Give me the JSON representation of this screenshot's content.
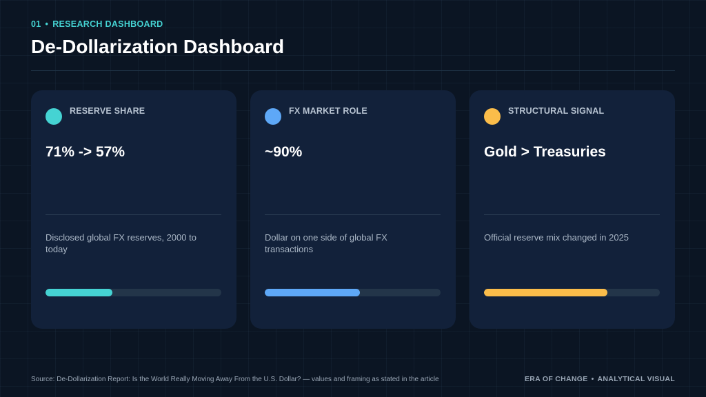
{
  "header": {
    "section_number": "01",
    "section_label": "RESEARCH DASHBOARD",
    "title": "De-Dollarization Dashboard"
  },
  "cards": [
    {
      "label": "RESERVE SHARE",
      "value": "71% -> 57%",
      "description": "Disclosed global FX reserves, 2000 to today",
      "color": "#45d3d3",
      "progress_fraction": 0.38
    },
    {
      "label": "FX MARKET ROLE",
      "value": "~90%",
      "description": "Dollar on one side of global FX transactions",
      "color": "#5ea8f7",
      "progress_fraction": 0.54
    },
    {
      "label": "STRUCTURAL SIGNAL",
      "value": "Gold > Treasuries",
      "description": "Official reserve mix changed in 2025",
      "color": "#fbbd4a",
      "progress_fraction": 0.7
    }
  ],
  "footer": {
    "source": "Source: De-Dollarization Report: Is the World Really Moving Away From the U.S. Dollar? — values and framing as stated in the article",
    "brand": "ERA OF CHANGE",
    "tag": "ANALYTICAL VISUAL"
  }
}
